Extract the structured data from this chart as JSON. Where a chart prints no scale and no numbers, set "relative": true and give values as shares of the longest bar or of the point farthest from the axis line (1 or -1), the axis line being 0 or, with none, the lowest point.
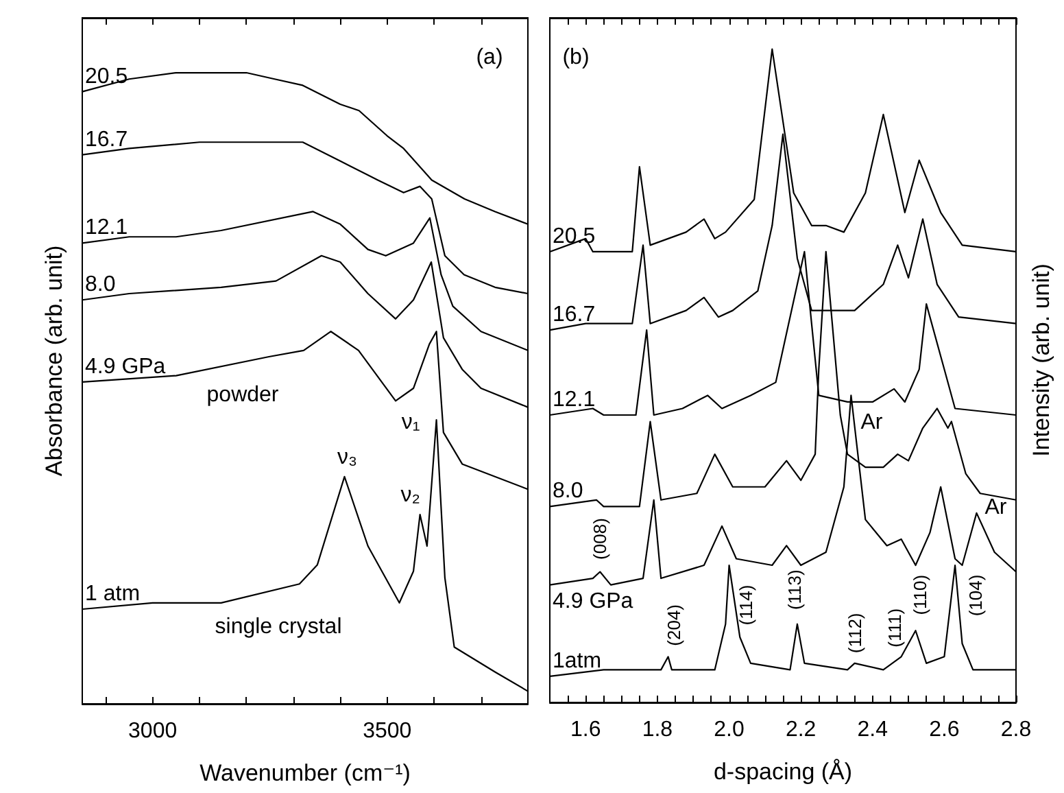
{
  "chart_data": [
    {
      "type": "line",
      "relative": true,
      "xlabel": "Wavenumber (cm⁻¹)",
      "ylabel": "Absorbance (arb. unit)",
      "xlim": [
        2850,
        3800
      ],
      "xticks": [
        {
          "value": 2900,
          "label": null
        },
        3000,
        {
          "value": 3100,
          "label": null
        },
        {
          "value": 3200,
          "label": null
        },
        {
          "value": 3300,
          "label": null
        },
        {
          "value": 3400,
          "label": null
        },
        3500,
        {
          "value": 3600,
          "label": null
        },
        {
          "value": 3700,
          "label": null
        }
      ],
      "series": [
        {
          "name": "20.5",
          "color": "#000000",
          "x": [
            2850,
            2950,
            3050,
            3110,
            3200,
            3260,
            3320,
            3400,
            3440,
            3500,
            3535,
            3595,
            3665,
            3730,
            3800
          ],
          "values": [
            0.97,
            0.99,
            1.0,
            1.0,
            1.0,
            0.99,
            0.98,
            0.95,
            0.94,
            0.9,
            0.88,
            0.83,
            0.8,
            0.78,
            0.76
          ]
        },
        {
          "name": "16.7",
          "color": "#000000",
          "x": [
            2850,
            2950,
            3100,
            3320,
            3400,
            3480,
            3535,
            3570,
            3595,
            3623,
            3664,
            3730,
            3800
          ],
          "values": [
            0.87,
            0.88,
            0.89,
            0.89,
            0.86,
            0.83,
            0.81,
            0.82,
            0.8,
            0.71,
            0.68,
            0.66,
            0.65
          ]
        },
        {
          "name": "12.1",
          "color": "#000000",
          "x": [
            2850,
            2950,
            3050,
            3146,
            3342,
            3400,
            3459,
            3497,
            3556,
            3591,
            3615,
            3640,
            3700,
            3800
          ],
          "values": [
            0.73,
            0.74,
            0.74,
            0.75,
            0.78,
            0.76,
            0.72,
            0.71,
            0.73,
            0.77,
            0.68,
            0.63,
            0.59,
            0.56
          ]
        },
        {
          "name": "8.0",
          "color": "#000000",
          "x": [
            2850,
            2950,
            3146,
            3263,
            3360,
            3400,
            3459,
            3518,
            3556,
            3594,
            3620,
            3660,
            3700,
            3800
          ],
          "values": [
            0.64,
            0.65,
            0.66,
            0.67,
            0.71,
            0.7,
            0.65,
            0.61,
            0.64,
            0.7,
            0.58,
            0.53,
            0.5,
            0.47
          ]
        },
        {
          "name": "4.9 GPa",
          "color": "#000000",
          "x": [
            2850,
            3050,
            3248,
            3322,
            3380,
            3439,
            3518,
            3556,
            3590,
            3605,
            3620,
            3660,
            3800
          ],
          "values": [
            0.51,
            0.52,
            0.55,
            0.56,
            0.59,
            0.56,
            0.48,
            0.5,
            0.57,
            0.59,
            0.43,
            0.38,
            0.34
          ]
        },
        {
          "name": "1 atm",
          "color": "#000000",
          "x": [
            2850,
            3000,
            3146,
            3313,
            3351,
            3409,
            3459,
            3526,
            3556,
            3570,
            3585,
            3605,
            3623,
            3643,
            3731,
            3800
          ],
          "values": [
            0.15,
            0.16,
            0.16,
            0.19,
            0.22,
            0.36,
            0.25,
            0.16,
            0.21,
            0.3,
            0.25,
            0.45,
            0.2,
            0.09,
            0.05,
            0.02
          ]
        }
      ],
      "annotations": [
        "(a)",
        "powder",
        "single crystal",
        {
          "text": "ν₃",
          "x": 3409,
          "y": 0.36
        },
        {
          "text": "ν₂",
          "x": 3570,
          "y": 0.3
        },
        {
          "text": "ν₁",
          "x": 3605,
          "y": 0.45
        }
      ]
    },
    {
      "type": "line",
      "relative": true,
      "xlabel": "d-spacing (Å)",
      "ylabel": "Intensity (arb. unit)",
      "xlim": [
        1.5,
        2.8
      ],
      "xticks": [
        {
          "value": 1.55,
          "label": null
        },
        1.6,
        {
          "value": 1.65,
          "label": null
        },
        {
          "value": 1.7,
          "label": null
        },
        {
          "value": 1.75,
          "label": null
        },
        1.8,
        {
          "value": 1.85,
          "label": null
        },
        {
          "value": 1.9,
          "label": null
        },
        {
          "value": 1.95,
          "label": null
        },
        {
          "value": 2.0,
          "label": "2.0"
        },
        {
          "value": 2.05,
          "label": null
        },
        {
          "value": 2.1,
          "label": null
        },
        {
          "value": 2.15,
          "label": null
        },
        2.2,
        {
          "value": 2.25,
          "label": null
        },
        {
          "value": 2.3,
          "label": null
        },
        {
          "value": 2.35,
          "label": null
        },
        2.4,
        {
          "value": 2.45,
          "label": null
        },
        {
          "value": 2.5,
          "label": null
        },
        {
          "value": 2.55,
          "label": null
        },
        2.6,
        {
          "value": 2.65,
          "label": null
        },
        {
          "value": 2.7,
          "label": null
        },
        {
          "value": 2.75,
          "label": null
        },
        2.8
      ],
      "series": [
        {
          "name": "20.5",
          "color": "#000000",
          "x": [
            1.5,
            1.6,
            1.62,
            1.73,
            1.75,
            1.78,
            1.88,
            1.93,
            1.96,
            1.99,
            2.07,
            2.12,
            2.18,
            2.23,
            2.27,
            2.32,
            2.38,
            2.43,
            2.49,
            2.53,
            2.59,
            2.65,
            2.8
          ],
          "values": [
            0.69,
            0.71,
            0.69,
            0.69,
            0.82,
            0.7,
            0.72,
            0.74,
            0.71,
            0.72,
            0.77,
            1.0,
            0.78,
            0.73,
            0.73,
            0.72,
            0.78,
            0.9,
            0.75,
            0.83,
            0.75,
            0.7,
            0.69
          ]
        },
        {
          "name": "16.7",
          "color": "#000000",
          "x": [
            1.5,
            1.6,
            1.63,
            1.73,
            1.76,
            1.78,
            1.88,
            1.93,
            1.97,
            2.01,
            2.08,
            2.12,
            2.15,
            2.19,
            2.23,
            2.31,
            2.35,
            2.43,
            2.47,
            2.5,
            2.54,
            2.58,
            2.64,
            2.8
          ],
          "values": [
            0.57,
            0.58,
            0.58,
            0.58,
            0.7,
            0.58,
            0.6,
            0.62,
            0.59,
            0.6,
            0.63,
            0.73,
            0.87,
            0.68,
            0.6,
            0.6,
            0.6,
            0.64,
            0.7,
            0.65,
            0.74,
            0.64,
            0.59,
            0.58
          ]
        },
        {
          "name": "12.1",
          "color": "#000000",
          "x": [
            1.5,
            1.62,
            1.65,
            1.74,
            1.77,
            1.79,
            1.87,
            1.94,
            1.98,
            2.06,
            2.13,
            2.21,
            2.25,
            2.33,
            2.4,
            2.46,
            2.49,
            2.53,
            2.55,
            2.6,
            2.63,
            2.8
          ],
          "values": [
            0.44,
            0.45,
            0.44,
            0.44,
            0.57,
            0.44,
            0.45,
            0.47,
            0.45,
            0.47,
            0.49,
            0.69,
            0.47,
            0.46,
            0.46,
            0.48,
            0.46,
            0.51,
            0.61,
            0.51,
            0.45,
            0.44
          ]
        },
        {
          "name": "8.0",
          "color": "#000000",
          "x": [
            1.5,
            1.63,
            1.65,
            1.75,
            1.78,
            1.81,
            1.91,
            1.96,
            2.01,
            2.1,
            2.16,
            2.2,
            2.24,
            2.25,
            2.27,
            2.31,
            2.33,
            2.38,
            2.43,
            2.47,
            2.5,
            2.54,
            2.58,
            2.61,
            2.62,
            2.66,
            2.7,
            2.8
          ],
          "values": [
            0.3,
            0.31,
            0.3,
            0.3,
            0.43,
            0.31,
            0.32,
            0.38,
            0.33,
            0.33,
            0.37,
            0.34,
            0.38,
            0.51,
            0.69,
            0.44,
            0.38,
            0.36,
            0.36,
            0.38,
            0.37,
            0.42,
            0.45,
            0.42,
            0.43,
            0.35,
            0.32,
            0.31
          ]
        },
        {
          "name": "4.9 GPa",
          "color": "#000000",
          "x": [
            1.5,
            1.62,
            1.64,
            1.67,
            1.76,
            1.79,
            1.81,
            1.93,
            1.98,
            2.02,
            2.12,
            2.16,
            2.2,
            2.27,
            2.32,
            2.34,
            2.38,
            2.44,
            2.48,
            2.52,
            2.56,
            2.59,
            2.63,
            2.65,
            2.69,
            2.74,
            2.8
          ],
          "values": [
            0.18,
            0.19,
            0.2,
            0.18,
            0.19,
            0.31,
            0.19,
            0.21,
            0.27,
            0.22,
            0.21,
            0.24,
            0.21,
            0.23,
            0.33,
            0.47,
            0.28,
            0.24,
            0.25,
            0.21,
            0.26,
            0.33,
            0.22,
            0.21,
            0.29,
            0.23,
            0.2
          ]
        },
        {
          "name": "1atm",
          "color": "#000000",
          "x": [
            1.5,
            1.65,
            1.81,
            1.83,
            1.84,
            1.96,
            1.99,
            2.0,
            2.03,
            2.06,
            2.17,
            2.19,
            2.21,
            2.33,
            2.35,
            2.43,
            2.48,
            2.52,
            2.55,
            2.6,
            2.63,
            2.65,
            2.68,
            2.8
          ],
          "values": [
            0.04,
            0.05,
            0.05,
            0.07,
            0.05,
            0.05,
            0.12,
            0.21,
            0.1,
            0.06,
            0.05,
            0.12,
            0.06,
            0.05,
            0.06,
            0.05,
            0.07,
            0.11,
            0.06,
            0.07,
            0.21,
            0.09,
            0.05,
            0.05
          ]
        }
      ],
      "annotations": [
        "(b)",
        {
          "text": "(008)",
          "x": 1.64,
          "y": 0.2
        },
        {
          "text": "(204)",
          "x": 1.83,
          "y": 0.07
        },
        {
          "text": "(114)",
          "x": 2.0,
          "y": 0.21
        },
        {
          "text": "(113)",
          "x": 2.19,
          "y": 0.12
        },
        {
          "text": "(112)",
          "x": 2.35,
          "y": 0.06
        },
        {
          "text": "(111)",
          "x": 2.48,
          "y": 0.07
        },
        {
          "text": "(110)",
          "x": 2.52,
          "y": 0.11
        },
        {
          "text": "(104)",
          "x": 2.63,
          "y": 0.21
        },
        {
          "text": "Ar",
          "x": 2.34,
          "y": 0.47
        },
        {
          "text": "Ar",
          "x": 2.69,
          "y": 0.29
        }
      ]
    }
  ]
}
